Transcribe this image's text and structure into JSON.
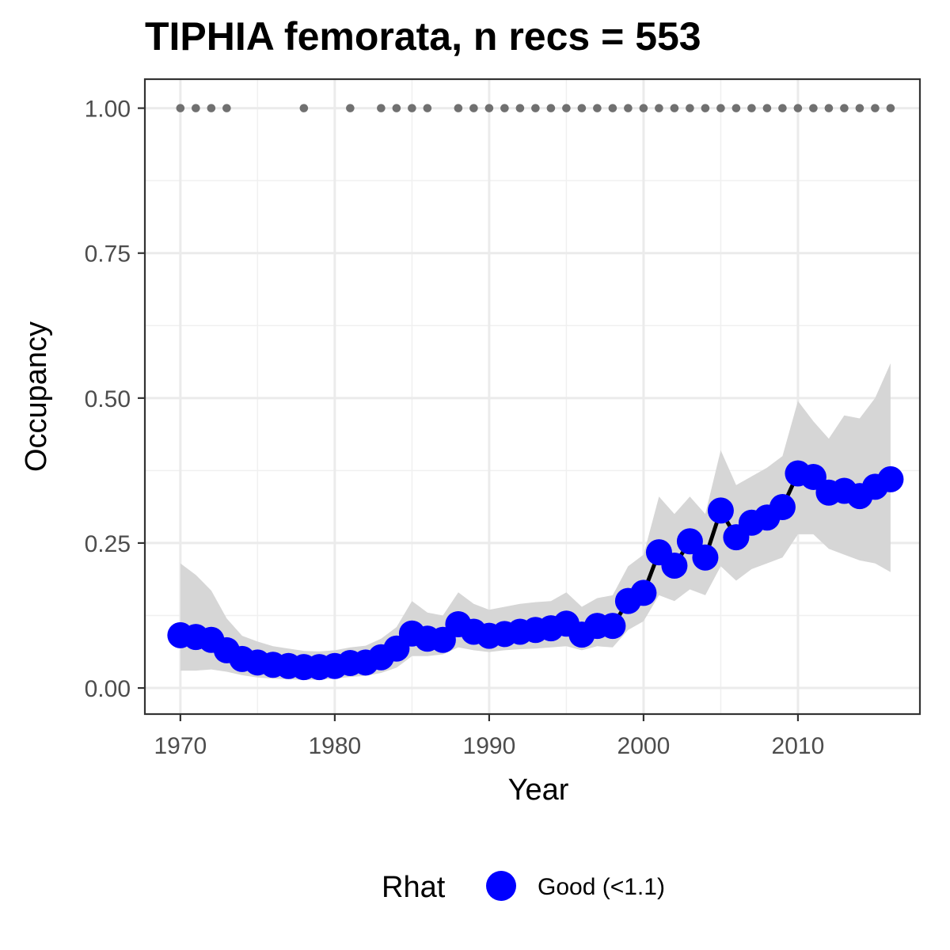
{
  "chart_data": {
    "type": "line",
    "title": "TIPHIA femorata, n recs = 553",
    "xlabel": "Year",
    "ylabel": "Occupancy",
    "xlim": [
      1967.7,
      2017.9
    ],
    "ylim": [
      -0.045,
      1.05
    ],
    "x_ticks": [
      1970,
      1980,
      1990,
      2000,
      2010
    ],
    "x_tick_labels": [
      "1970",
      "1980",
      "1990",
      "2000",
      "2010"
    ],
    "y_ticks": [
      0,
      0.25,
      0.5,
      0.75,
      1.0
    ],
    "y_tick_labels": [
      "0.00",
      "0.25",
      "0.50",
      "0.75",
      "1.00"
    ],
    "grid": true,
    "legend": {
      "position": "bottom",
      "title": "Rhat",
      "entries": [
        {
          "label": "Good (<1.1)",
          "color": "#0000ff"
        }
      ]
    },
    "colors": {
      "points": "#0000ff",
      "line": "#000000",
      "ribbon": "#d6d6d6",
      "record_points": "#707070"
    },
    "x": [
      1970,
      1971,
      1972,
      1973,
      1974,
      1975,
      1976,
      1977,
      1978,
      1979,
      1980,
      1981,
      1982,
      1983,
      1984,
      1985,
      1986,
      1987,
      1988,
      1989,
      1990,
      1991,
      1992,
      1993,
      1994,
      1995,
      1996,
      1997,
      1998,
      1999,
      2000,
      2001,
      2002,
      2003,
      2004,
      2005,
      2006,
      2007,
      2008,
      2009,
      2010,
      2011,
      2012,
      2013,
      2014,
      2015,
      2016
    ],
    "series": [
      {
        "values": [
          0.091,
          0.088,
          0.083,
          0.065,
          0.05,
          0.044,
          0.04,
          0.038,
          0.036,
          0.036,
          0.038,
          0.043,
          0.044,
          0.053,
          0.068,
          0.094,
          0.085,
          0.083,
          0.11,
          0.097,
          0.09,
          0.093,
          0.097,
          0.1,
          0.103,
          0.111,
          0.092,
          0.107,
          0.107,
          0.15,
          0.164,
          0.234,
          0.211,
          0.253,
          0.225,
          0.306,
          0.26,
          0.285,
          0.294,
          0.312,
          0.37,
          0.364,
          0.337,
          0.34,
          0.331,
          0.347,
          0.36
        ],
        "lower": [
          0.03,
          0.03,
          0.032,
          0.028,
          0.022,
          0.018,
          0.016,
          0.015,
          0.014,
          0.014,
          0.016,
          0.019,
          0.021,
          0.026,
          0.035,
          0.055,
          0.055,
          0.058,
          0.07,
          0.065,
          0.062,
          0.065,
          0.067,
          0.068,
          0.07,
          0.072,
          0.065,
          0.072,
          0.07,
          0.1,
          0.115,
          0.16,
          0.15,
          0.17,
          0.16,
          0.21,
          0.185,
          0.205,
          0.215,
          0.225,
          0.265,
          0.265,
          0.24,
          0.23,
          0.22,
          0.215,
          0.2
        ],
        "upper": [
          0.215,
          0.195,
          0.168,
          0.12,
          0.09,
          0.08,
          0.072,
          0.068,
          0.064,
          0.063,
          0.065,
          0.07,
          0.073,
          0.085,
          0.105,
          0.15,
          0.13,
          0.125,
          0.165,
          0.145,
          0.135,
          0.14,
          0.145,
          0.148,
          0.15,
          0.165,
          0.14,
          0.155,
          0.16,
          0.21,
          0.23,
          0.33,
          0.3,
          0.33,
          0.3,
          0.41,
          0.35,
          0.365,
          0.38,
          0.4,
          0.495,
          0.46,
          0.43,
          0.47,
          0.465,
          0.5,
          0.56
        ]
      }
    ],
    "record_years": [
      1970,
      1971,
      1972,
      1973,
      1978,
      1981,
      1983,
      1984,
      1985,
      1986,
      1988,
      1989,
      1990,
      1991,
      1992,
      1993,
      1994,
      1995,
      1996,
      1997,
      1998,
      1999,
      2000,
      2001,
      2002,
      2003,
      2004,
      2005,
      2006,
      2007,
      2008,
      2009,
      2010,
      2011,
      2012,
      2013,
      2014,
      2015,
      2016
    ],
    "record_value": 1.0
  }
}
